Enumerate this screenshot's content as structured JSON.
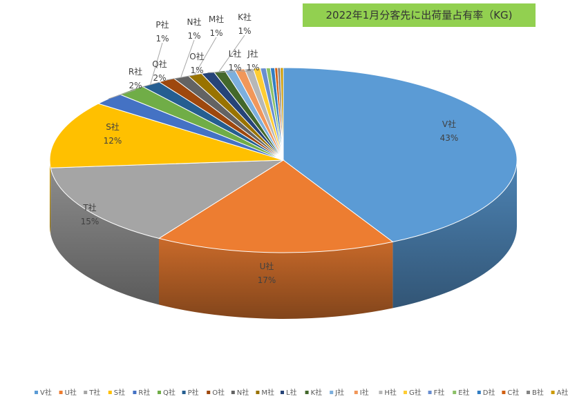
{
  "chart_data": {
    "type": "pie",
    "title": "2022年1月分客先に出荷量占有率（KG)",
    "categories": [
      "V社",
      "U社",
      "T社",
      "S社",
      "R社",
      "Q社",
      "P社",
      "O社",
      "N社",
      "M社",
      "L社",
      "K社",
      "J社",
      "I社",
      "H社",
      "G社",
      "F社",
      "E社",
      "D社",
      "C社",
      "B社",
      "A社"
    ],
    "values": [
      43,
      17,
      15,
      12,
      2.2,
      2.1,
      1.4,
      1.2,
      1.1,
      1.0,
      0.9,
      0.8,
      0.7,
      0.7,
      0.6,
      0.5,
      0.4,
      0.3,
      0.3,
      0.2,
      0.2,
      0.2
    ],
    "labels": [
      {
        "name": "V社",
        "pct": "43%"
      },
      {
        "name": "U社",
        "pct": "17%"
      },
      {
        "name": "T社",
        "pct": "15%"
      },
      {
        "name": "S社",
        "pct": "12%"
      },
      {
        "name": "R社",
        "pct": "2%"
      },
      {
        "name": "Q社",
        "pct": "2%"
      },
      {
        "name": "P社",
        "pct": "1%"
      },
      {
        "name": "O社",
        "pct": "1%"
      },
      {
        "name": "N社",
        "pct": "1%"
      },
      {
        "name": "M社",
        "pct": "1%"
      },
      {
        "name": "L社",
        "pct": "1%"
      },
      {
        "name": "K社",
        "pct": "1%"
      },
      {
        "name": "J社",
        "pct": "1%"
      }
    ],
    "colors": [
      "#5b9bd5",
      "#ed7d31",
      "#a5a5a5",
      "#ffc000",
      "#4472c4",
      "#70ad47",
      "#255e91",
      "#9e480e",
      "#636363",
      "#997300",
      "#264478",
      "#43682b",
      "#7cafdd",
      "#f1975a",
      "#b7b7b7",
      "#ffcd33",
      "#698ed0",
      "#8cc168",
      "#327dc2",
      "#d26012",
      "#848484",
      "#cc9a00"
    ],
    "legend_position": "bottom",
    "style": "3d-pie"
  }
}
